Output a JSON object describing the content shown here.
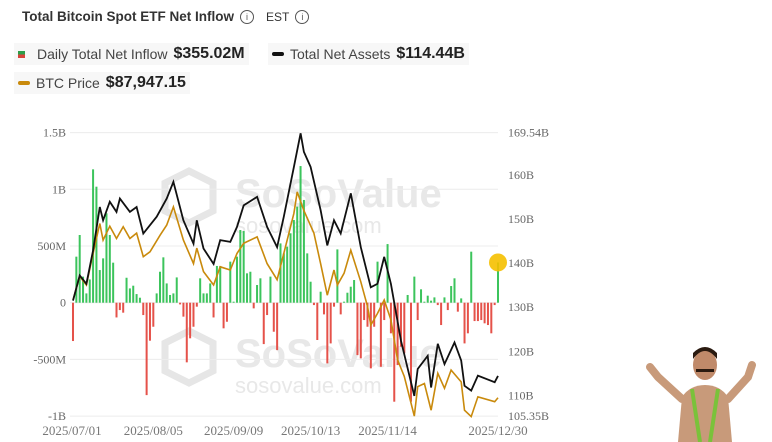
{
  "header": {
    "title": "Total Bitcoin Spot ETF Net Inflow",
    "timezone": "EST"
  },
  "legend": {
    "inflow": {
      "label": "Daily Total Net Inflow",
      "value": "$355.02M"
    },
    "assets": {
      "label": "Total Net Assets",
      "value": "$114.44B"
    },
    "btc": {
      "label": "BTC Price",
      "value": "$87,947.15"
    }
  },
  "colors": {
    "positive": "#3cc45c",
    "negative": "#e5524a",
    "assets": "#111111",
    "btc": "#c98a0c",
    "highlight": "#f5c000"
  },
  "watermark": {
    "brand": "SoSoValue",
    "url": "sosovalue.com"
  },
  "chart_data": {
    "type": "bar+line",
    "title": "Total Bitcoin Spot ETF Net Inflow",
    "x_ticks": [
      "2025/07/01",
      "2025/08/05",
      "2025/09/09",
      "2025/10/13",
      "2025/11/14",
      "2025/12/30"
    ],
    "y_left": {
      "ticks": [
        "1.5B",
        "1B",
        "500M",
        "0",
        "-500M",
        "-1B"
      ],
      "range_millions": [
        -1000,
        1500
      ]
    },
    "y_right": {
      "ticks": [
        "169.54B",
        "160B",
        "150B",
        "140B",
        "130B",
        "120B",
        "110B",
        "105.35B"
      ],
      "range_billions": [
        105.35,
        169.54
      ]
    },
    "grid": true,
    "inflow_millions": [
      -338,
      406,
      597,
      230,
      82,
      205,
      1176,
      1023,
      288,
      391,
      788,
      597,
      353,
      -130,
      -65,
      -88,
      220,
      126,
      150,
      76,
      44,
      -109,
      -815,
      -335,
      -212,
      82,
      273,
      400,
      170,
      68,
      82,
      223,
      -15,
      -123,
      -526,
      -314,
      -212,
      -35,
      215,
      82,
      82,
      170,
      -130,
      324,
      324,
      -226,
      -168,
      362,
      9,
      406,
      641,
      632,
      259,
      273,
      -50,
      156,
      215,
      -365,
      -109,
      230,
      -256,
      -418,
      523,
      435,
      494,
      612,
      729,
      847,
      1205,
      906,
      435,
      185,
      -21,
      -329,
      97,
      -103,
      -535,
      -359,
      -35,
      470,
      -103,
      9,
      88,
      141,
      200,
      -462,
      -491,
      -153,
      -212,
      -579,
      -212,
      362,
      -565,
      -153,
      517,
      -270,
      -873,
      -550,
      -388,
      -447,
      68,
      -873,
      230,
      -153,
      118,
      9,
      62,
      18,
      47,
      -21,
      -197,
      47,
      -65,
      147,
      215,
      -79,
      38,
      -359,
      -270,
      450,
      -162,
      -162,
      -153,
      -182,
      -197,
      -270,
      -21,
      355
    ],
    "total_net_assets_billions": [
      [
        0,
        131.5
      ],
      [
        2,
        137.2
      ],
      [
        4,
        135.3
      ],
      [
        6,
        142.9
      ],
      [
        8,
        152.7
      ],
      [
        9,
        149.7
      ],
      [
        11,
        153.9
      ],
      [
        13,
        151.6
      ],
      [
        14,
        154.6
      ],
      [
        17,
        151.6
      ],
      [
        19,
        152.7
      ],
      [
        21,
        146.7
      ],
      [
        25,
        150.5
      ],
      [
        28,
        154.6
      ],
      [
        30,
        158.4
      ],
      [
        33,
        149.7
      ],
      [
        36,
        144.4
      ],
      [
        37,
        149.7
      ],
      [
        39,
        143.3
      ],
      [
        42,
        139.8
      ],
      [
        44,
        145.2
      ],
      [
        47,
        144.8
      ],
      [
        49,
        148.2
      ],
      [
        51,
        153.1
      ],
      [
        55,
        155.0
      ],
      [
        58,
        148.2
      ],
      [
        61,
        143.6
      ],
      [
        63,
        150.5
      ],
      [
        66,
        161.8
      ],
      [
        68,
        169.4
      ],
      [
        69,
        165.2
      ],
      [
        71,
        161.8
      ],
      [
        74,
        152.0
      ],
      [
        76,
        144.0
      ],
      [
        78,
        149.7
      ],
      [
        80,
        146.7
      ],
      [
        83,
        155.8
      ],
      [
        86,
        143.6
      ],
      [
        89,
        134.5
      ],
      [
        91,
        135.3
      ],
      [
        93,
        141.4
      ],
      [
        95,
        135.3
      ],
      [
        98,
        122.4
      ],
      [
        102,
        109.9
      ],
      [
        103,
        116.0
      ],
      [
        106,
        119.0
      ],
      [
        107,
        111.8
      ],
      [
        109,
        121.7
      ],
      [
        111,
        117.1
      ],
      [
        114,
        122.0
      ],
      [
        116,
        117.9
      ],
      [
        117,
        112.2
      ],
      [
        119,
        111.1
      ],
      [
        121,
        114.5
      ],
      [
        126,
        113.0
      ],
      [
        127,
        114.44
      ]
    ],
    "btc_price_usd": [
      [
        0,
        106200
      ],
      [
        2,
        110600
      ],
      [
        4,
        109000
      ],
      [
        6,
        114900
      ],
      [
        8,
        120500
      ],
      [
        9,
        117400
      ],
      [
        11,
        120000
      ],
      [
        13,
        117700
      ],
      [
        15,
        119900
      ],
      [
        17,
        117700
      ],
      [
        19,
        118700
      ],
      [
        21,
        114300
      ],
      [
        23,
        115200
      ],
      [
        26,
        118300
      ],
      [
        28,
        120200
      ],
      [
        30,
        123600
      ],
      [
        33,
        117400
      ],
      [
        36,
        113000
      ],
      [
        37,
        115900
      ],
      [
        39,
        111500
      ],
      [
        42,
        109000
      ],
      [
        44,
        112400
      ],
      [
        47,
        111800
      ],
      [
        49,
        114900
      ],
      [
        51,
        116800
      ],
      [
        55,
        118000
      ],
      [
        58,
        113000
      ],
      [
        61,
        110000
      ],
      [
        63,
        114900
      ],
      [
        66,
        122400
      ],
      [
        67,
        126400
      ],
      [
        69,
        122900
      ],
      [
        72,
        118700
      ],
      [
        74,
        113000
      ],
      [
        76,
        107100
      ],
      [
        78,
        111800
      ],
      [
        79,
        109000
      ],
      [
        81,
        111200
      ],
      [
        83,
        115500
      ],
      [
        86,
        109600
      ],
      [
        88,
        105000
      ],
      [
        89,
        101500
      ],
      [
        91,
        103700
      ],
      [
        93,
        106200
      ],
      [
        95,
        102500
      ],
      [
        97,
        95000
      ],
      [
        99,
        91900
      ],
      [
        102,
        84500
      ],
      [
        103,
        90000
      ],
      [
        105,
        90600
      ],
      [
        107,
        85600
      ],
      [
        109,
        92500
      ],
      [
        111,
        89700
      ],
      [
        113,
        93100
      ],
      [
        116,
        90900
      ],
      [
        117,
        85600
      ],
      [
        119,
        84400
      ],
      [
        121,
        88100
      ],
      [
        126,
        87200
      ],
      [
        127,
        87947.15
      ]
    ]
  }
}
